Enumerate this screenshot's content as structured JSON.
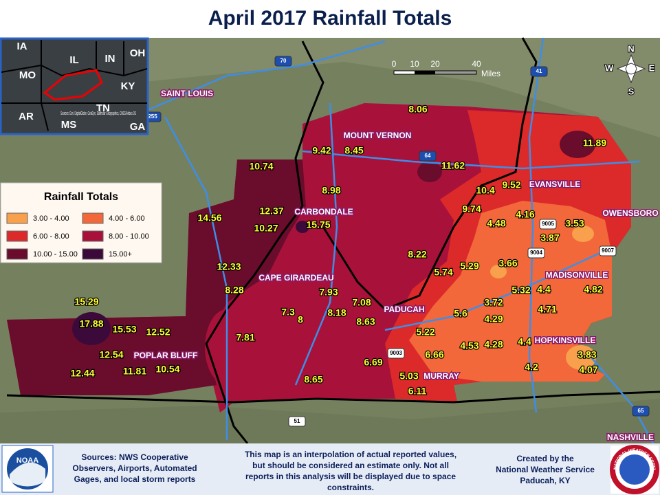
{
  "title": "April 2017 Rainfall Totals",
  "inset": {
    "states": [
      "IA",
      "IL",
      "IN",
      "OH",
      "MO",
      "KY",
      "AR",
      "TN",
      "MS",
      "GA"
    ],
    "attribution": "Sources: Esri, DigitalGlobe, GeoEye, Earthstar Geographics, CNES/Airbus DS"
  },
  "legend": {
    "title": "Rainfall Totals",
    "items": [
      {
        "label": "3.00 - 4.00",
        "color": "#f8a04c"
      },
      {
        "label": "4.00 - 6.00",
        "color": "#f2683a"
      },
      {
        "label": "6.00 - 8.00",
        "color": "#dc2a2a"
      },
      {
        "label": "8.00 - 10.00",
        "color": "#a8123a"
      },
      {
        "label": "10.00 - 15.00",
        "color": "#6a0c2c"
      },
      {
        "label": "15.00+",
        "color": "#3c0a3a"
      }
    ]
  },
  "cities": [
    "MOUNT VERNON",
    "EVANSVILLE",
    "OWENSBORO",
    "CARBONDALE",
    "MADISONVILLE",
    "CAPE GIRARDEAU",
    "PADUCAH",
    "HOPKINSVILLE",
    "POPLAR BLUFF",
    "MURRAY",
    "SAINT LOUIS",
    "NASHVILLE"
  ],
  "rainfall": [
    8.06,
    11.89,
    9.42,
    8.45,
    10.74,
    11.62,
    10.4,
    9.52,
    8.98,
    14.56,
    12.37,
    10.27,
    15.75,
    9.74,
    4.48,
    4.16,
    3.53,
    3.87,
    8.22,
    5.29,
    5.74,
    3.66,
    12.33,
    8.28,
    7.93,
    5.32,
    4.4,
    4.82,
    7.08,
    3.72,
    15.29,
    7.3,
    8,
    8.18,
    8.63,
    5.6,
    4.71,
    4.29,
    17.88,
    15.53,
    12.52,
    5.22,
    7.81,
    4.53,
    4.28,
    4.4,
    12.54,
    6.66,
    3.83,
    11.81,
    10.54,
    6.69,
    4.2,
    4.07,
    12.44,
    5.03,
    8.65,
    6.11
  ],
  "highways": [
    "70",
    "64",
    "41",
    "255",
    "9005",
    "9004",
    "9007",
    "9003",
    "51",
    "65"
  ],
  "scale": {
    "ticks": [
      "0",
      "10",
      "20",
      "40"
    ],
    "unit": "Miles"
  },
  "compass": [
    "N",
    "E",
    "S",
    "W"
  ],
  "footer": {
    "sources": [
      "Sources: NWS Cooperative",
      "Observers, Airports, Automated",
      "Gages, and local storm reports"
    ],
    "disclaimer": [
      "This map is an interpolation of actual reported values,",
      "but should be considered an estimate only. Not all",
      "reports in this analysis will be displayed due to space",
      "constraints."
    ],
    "credit": [
      "Created by the",
      "National Weather Service",
      "Paducah, KY"
    ]
  },
  "logos": {
    "noaa": "NOAA",
    "nws": "NATIONAL WEATHER SERVICE"
  }
}
